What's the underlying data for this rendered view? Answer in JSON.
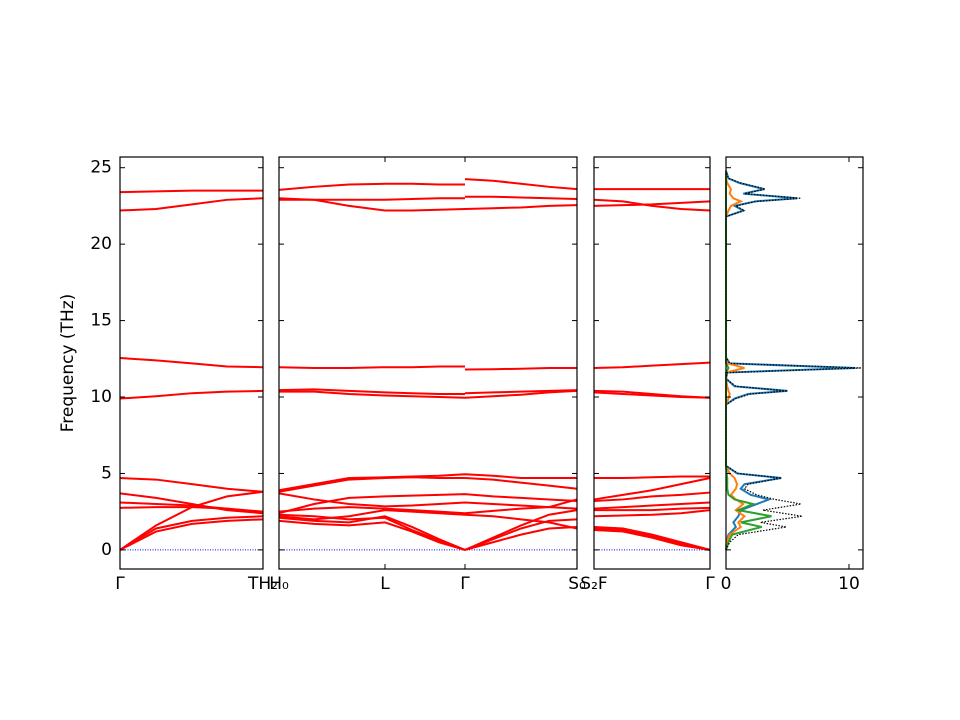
{
  "chart_data": {
    "type": "band",
    "ylabel": "Frequency (THz)",
    "ylim": [
      -1.25,
      25.7
    ],
    "yticks": [
      0,
      5,
      10,
      15,
      20,
      25
    ],
    "band_color": "#ff0000",
    "zero_line": {
      "value": 0,
      "color": "#0000ff"
    },
    "panels": [
      {
        "x": [
          0,
          0.36,
          0.72,
          1.07,
          1.43
        ],
        "xlim": [
          0,
          1.43
        ],
        "xticks": [
          {
            "value": 0,
            "label": "Γ"
          },
          {
            "value": 1.43,
            "label": "TH₂"
          }
        ],
        "bands": [
          {
            "values": [
              23.4,
              23.45,
              23.5,
              23.5,
              23.5
            ]
          },
          {
            "values": [
              22.2,
              22.3,
              22.6,
              22.9,
              23.0
            ]
          },
          {
            "values": [
              12.55,
              12.4,
              12.2,
              12.0,
              11.95
            ]
          },
          {
            "values": [
              9.9,
              10.05,
              10.25,
              10.35,
              10.4
            ]
          },
          {
            "values": [
              4.7,
              4.6,
              4.3,
              4.0,
              3.8
            ]
          },
          {
            "values": [
              3.7,
              3.4,
              3.0,
              2.6,
              2.4
            ]
          },
          {
            "values": [
              3.1,
              3.0,
              2.9,
              2.7,
              2.5
            ]
          },
          {
            "values": [
              2.75,
              2.8,
              2.8,
              2.7,
              2.4
            ]
          },
          {
            "values": [
              0,
              1.6,
              2.8,
              3.5,
              3.8
            ]
          },
          {
            "values": [
              0,
              1.4,
              1.9,
              2.1,
              2.2
            ]
          },
          {
            "values": [
              0,
              1.2,
              1.7,
              1.9,
              2.0
            ]
          }
        ]
      },
      {
        "x": [
          0,
          0.35,
          0.7,
          1.06,
          1.33,
          1.6,
          1.86,
          1.86,
          1.86,
          2.14,
          2.42,
          2.7,
          2.98
        ],
        "xlim": [
          0,
          2.98
        ],
        "xticks": [
          {
            "value": 0,
            "label": "H₀"
          },
          {
            "value": 1.06,
            "label": "L"
          },
          {
            "value": 1.86,
            "label": "Γ"
          },
          {
            "value": 2.98,
            "label": "S₀"
          }
        ],
        "bands": [
          {
            "values": [
              23.55,
              23.75,
              23.9,
              23.95,
              23.95,
              23.9,
              23.9,
              null,
              24.25,
              24.15,
              23.95,
              23.75,
              23.6
            ]
          },
          {
            "values": [
              23.0,
              22.9,
              22.5,
              22.2,
              22.2,
              22.25,
              22.3,
              null,
              22.3,
              22.35,
              22.4,
              22.5,
              22.55
            ]
          },
          {
            "values": [
              22.9,
              22.9,
              22.9,
              22.9,
              22.95,
              23.0,
              23.0,
              null,
              23.1,
              23.1,
              23.05,
              23.0,
              22.95
            ]
          },
          {
            "values": [
              11.95,
              11.9,
              11.9,
              11.95,
              11.95,
              12.0,
              12.0,
              null,
              11.8,
              11.82,
              11.85,
              11.9,
              11.9
            ]
          },
          {
            "values": [
              10.45,
              10.5,
              10.4,
              10.3,
              10.25,
              10.2,
              10.2,
              null,
              10.25,
              10.3,
              10.35,
              10.4,
              10.45
            ]
          },
          {
            "values": [
              10.35,
              10.35,
              10.2,
              10.1,
              10.05,
              10.0,
              9.95,
              null,
              9.95,
              10.05,
              10.15,
              10.3,
              10.4
            ]
          },
          {
            "values": [
              3.9,
              4.3,
              4.7,
              4.75,
              4.8,
              4.85,
              4.95,
              null,
              4.95,
              4.85,
              4.7,
              4.7,
              4.7
            ]
          },
          {
            "values": [
              3.8,
              4.2,
              4.6,
              4.7,
              4.75,
              4.7,
              4.7,
              null,
              4.7,
              4.6,
              4.4,
              4.2,
              4.0
            ]
          },
          {
            "values": [
              3.7,
              3.3,
              3.0,
              2.85,
              2.9,
              3.0,
              3.1,
              null,
              3.1,
              3.0,
              2.9,
              2.8,
              2.7
            ]
          },
          {
            "values": [
              2.4,
              3.0,
              3.4,
              3.5,
              3.55,
              3.6,
              3.65,
              null,
              3.65,
              3.5,
              3.4,
              3.3,
              3.2
            ]
          },
          {
            "values": [
              2.5,
              2.7,
              2.8,
              2.7,
              2.6,
              2.5,
              2.4,
              null,
              2.4,
              2.55,
              2.7,
              2.8,
              3.3
            ]
          },
          {
            "values": [
              2.2,
              2.0,
              2.2,
              2.6,
              2.5,
              2.4,
              2.3,
              null,
              2.3,
              2.2,
              2.0,
              1.8,
              1.4
            ]
          },
          {
            "values": [
              2.3,
              2.2,
              2.0,
              2.1,
              1.3,
              0.6,
              0,
              null,
              0,
              0.8,
              1.6,
              2.3,
              2.6
            ]
          },
          {
            "values": [
              2.1,
              1.9,
              1.8,
              2.2,
              1.5,
              0.7,
              0,
              null,
              0,
              0.7,
              1.4,
              1.9,
              2.0
            ]
          },
          {
            "values": [
              1.9,
              1.7,
              1.6,
              1.8,
              1.2,
              0.5,
              0,
              null,
              0,
              0.5,
              1.0,
              1.4,
              1.5
            ]
          }
        ]
      },
      {
        "x": [
          0,
          0.29,
          0.58,
          0.87,
          1.16
        ],
        "xlim": [
          0,
          1.16
        ],
        "xticks": [
          {
            "value": 0,
            "label": "S₂F"
          },
          {
            "value": 1.16,
            "label": "Γ"
          }
        ],
        "bands": [
          {
            "values": [
              23.6,
              23.6,
              23.6,
              23.6,
              23.6
            ]
          },
          {
            "values": [
              22.9,
              22.8,
              22.5,
              22.3,
              22.2
            ]
          },
          {
            "values": [
              22.5,
              22.55,
              22.6,
              22.7,
              22.8
            ]
          },
          {
            "values": [
              11.9,
              11.95,
              12.05,
              12.15,
              12.25
            ]
          },
          {
            "values": [
              10.4,
              10.35,
              10.2,
              10.05,
              9.95
            ]
          },
          {
            "values": [
              10.3,
              10.2,
              10.1,
              10.0,
              9.95
            ]
          },
          {
            "values": [
              4.7,
              4.7,
              4.75,
              4.8,
              4.8
            ]
          },
          {
            "values": [
              3.3,
              3.6,
              3.9,
              4.3,
              4.7
            ]
          },
          {
            "values": [
              3.2,
              3.3,
              3.5,
              3.6,
              3.75
            ]
          },
          {
            "values": [
              2.7,
              2.8,
              2.9,
              3.0,
              3.1
            ]
          },
          {
            "values": [
              2.6,
              2.6,
              2.6,
              2.7,
              2.75
            ]
          },
          {
            "values": [
              2.2,
              2.25,
              2.3,
              2.4,
              2.6
            ]
          },
          {
            "values": [
              1.5,
              1.4,
              1.0,
              0.5,
              0
            ]
          },
          {
            "values": [
              1.4,
              1.3,
              0.9,
              0.4,
              0
            ]
          },
          {
            "values": [
              1.3,
              1.2,
              0.8,
              0.3,
              0
            ]
          }
        ]
      }
    ],
    "dos": {
      "xlim": [
        0,
        11.14
      ],
      "xticks": [
        0,
        10
      ],
      "frequencies": [
        0,
        0.5,
        1,
        1.5,
        1.8,
        2.2,
        2.6,
        3.0,
        3.3,
        3.6,
        4.0,
        4.3,
        4.7,
        5.0,
        5.5,
        9.5,
        9.9,
        10.2,
        10.4,
        10.7,
        11.2,
        11.6,
        11.9,
        12.2,
        12.6,
        21.8,
        22.2,
        22.5,
        22.8,
        23.0,
        23.3,
        23.6,
        24.0,
        24.3,
        24.8
      ],
      "series": [
        {
          "color": "#1f77b4",
          "linestyle": "solid",
          "values": [
            0,
            0.05,
            0.2,
            0.8,
            0.6,
            1.0,
            1.2,
            2.5,
            3.5,
            2.0,
            1.2,
            1.5,
            4.5,
            0.9,
            0,
            0,
            0.7,
            1.8,
            5.0,
            0.7,
            0,
            0.1,
            10.5,
            0.3,
            0,
            0,
            1.4,
            0.7,
            2.4,
            5.8,
            1.4,
            3.1,
            1.1,
            0.2,
            0
          ]
        },
        {
          "color": "#ff7f0e",
          "linestyle": "solid",
          "values": [
            0,
            0.05,
            0.3,
            1.2,
            1.0,
            1.5,
            0.8,
            1.4,
            0.8,
            0.4,
            0.8,
            0.9,
            0.7,
            0.3,
            0,
            0,
            0.2,
            0.3,
            0.2,
            0.1,
            0,
            0,
            1.5,
            0.1,
            0,
            0,
            0.2,
            0.4,
            1.2,
            0.6,
            0.3,
            0.4,
            0.1,
            0,
            0
          ]
        },
        {
          "color": "#2ca02c",
          "linestyle": "solid",
          "values": [
            0,
            0.2,
            0.5,
            2.9,
            1.2,
            3.7,
            1.0,
            2.2,
            0.7,
            0.2,
            0.1,
            0.1,
            0.1,
            0.05,
            0,
            0,
            0,
            0,
            0,
            0,
            0,
            0,
            0.2,
            0,
            0,
            0,
            0,
            0,
            0,
            0,
            0,
            0,
            0,
            0,
            0
          ]
        },
        {
          "color": "#000000",
          "linestyle": "dotted",
          "values": [
            0,
            0.3,
            1.0,
            4.9,
            2.8,
            6.2,
            3.0,
            6.1,
            4.0,
            2.5,
            1.5,
            1.8,
            4.5,
            1.0,
            0,
            0,
            0.8,
            2.0,
            5.0,
            0.8,
            0,
            0.1,
            11.0,
            0.3,
            0,
            0,
            1.5,
            0.8,
            2.5,
            6.1,
            1.5,
            3.2,
            1.2,
            0.2,
            0
          ]
        }
      ]
    }
  }
}
